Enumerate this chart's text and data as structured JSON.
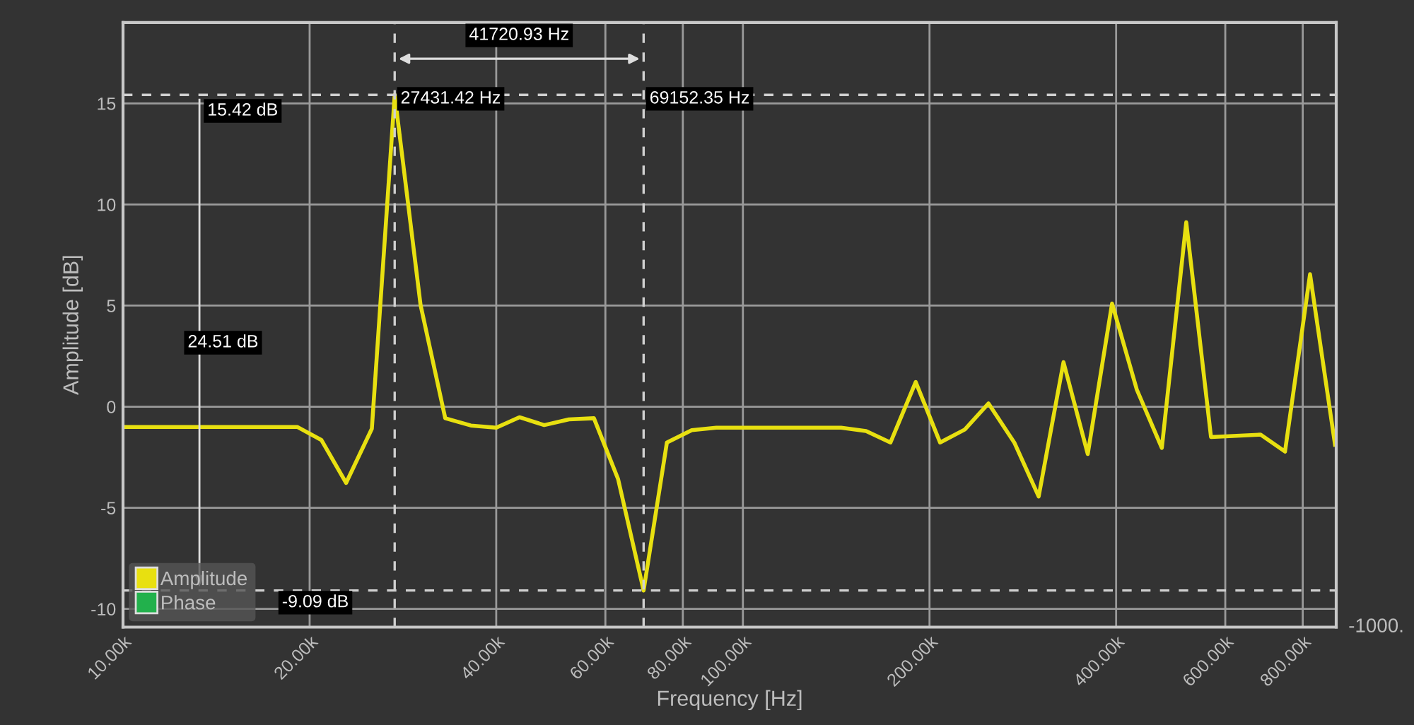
{
  "chart_data": {
    "type": "line",
    "xlabel": "Frequency [Hz]",
    "ylabel": "Amplitude [dB]",
    "log": "x",
    "xlim": [
      10000,
      906000
    ],
    "xticks": [
      {
        "value": 10000,
        "label": "10.00k"
      },
      {
        "value": 20000,
        "label": "20.00k"
      },
      {
        "value": 40000,
        "label": "40.00k"
      },
      {
        "value": 60000,
        "label": "60.00k"
      },
      {
        "value": 80000,
        "label": "80.00k"
      },
      {
        "value": 100000,
        "label": "100.00k"
      },
      {
        "value": 200000,
        "label": "200.00k"
      },
      {
        "value": 400000,
        "label": "400.00k"
      },
      {
        "value": 600000,
        "label": "600.00k"
      },
      {
        "value": 800000,
        "label": "800.00k"
      }
    ],
    "ylim": [
      -10.9,
      19
    ],
    "yticks": [
      -10,
      -5,
      0,
      5,
      10,
      15
    ],
    "grid": true,
    "legend": "bottom left",
    "series": [
      {
        "name": "Amplitude",
        "color": "#e8e010",
        "x": [
          10000,
          19100,
          20900,
          22900,
          25200,
          27431.42,
          30200,
          33100,
          36400,
          40000,
          43600,
          47800,
          52400,
          57500,
          62900,
          69152.35,
          75400,
          82700,
          90600,
          100000,
          120000,
          144000,
          158000,
          173000,
          190000,
          208000,
          228000,
          249000,
          274000,
          300000,
          329000,
          360000,
          394000,
          432000,
          474000,
          519000,
          569000,
          684000,
          749000,
          822000,
          902000
        ],
        "values": [
          -1.0,
          -1.0,
          -1.65,
          -3.77,
          -1.09,
          15.42,
          5.03,
          -0.57,
          -0.93,
          -1.04,
          -0.52,
          -0.91,
          -0.63,
          -0.57,
          -3.58,
          -9.09,
          -1.77,
          -1.16,
          -1.04,
          -1.04,
          -1.04,
          -1.04,
          -1.2,
          -1.77,
          1.22,
          -1.77,
          -1.13,
          0.16,
          -1.77,
          -4.44,
          2.2,
          -2.34,
          5.1,
          0.84,
          -2.04,
          9.12,
          -1.5,
          -1.38,
          -2.22,
          6.55,
          -1.88
        ]
      },
      {
        "name": "Phase",
        "color": "#22b14c",
        "values": [
          null
        ]
      }
    ],
    "ref_lines": [
      {
        "axis": "x",
        "value": 27431.42,
        "label": "27431.42 Hz",
        "color": "#d0d0d0",
        "line_style": "dashed"
      },
      {
        "axis": "x",
        "value": 69152.35,
        "label": "69152.35 Hz",
        "color": "#d0d0d0",
        "line_style": "dashed"
      },
      {
        "axis": "y",
        "value": 15.42,
        "label": "15.42 dB",
        "color": "#d0d0d0",
        "line_style": "dashed"
      },
      {
        "axis": "y",
        "value": -9.09,
        "label": "-9.09 dB",
        "color": "#d0d0d0",
        "line_style": "dashed"
      }
    ],
    "annotations": [
      "41720.93 Hz",
      "24.51 dB",
      "-1000."
    ]
  }
}
